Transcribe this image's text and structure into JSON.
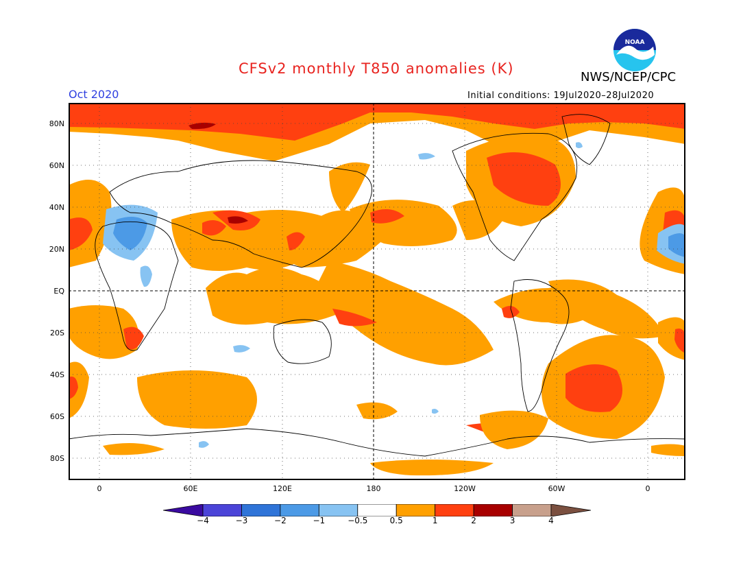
{
  "title": "CFSv2 monthly T850 anomalies (K)",
  "agency": "NWS/NCEP/CPC",
  "logo_text": "NOAA",
  "month": "Oct 2020",
  "initial_conditions": "Initial conditions: 19Jul2020–28Jul2020",
  "lat_labels": [
    "80N",
    "60N",
    "40N",
    "20N",
    "EQ",
    "20S",
    "40S",
    "60S",
    "80S"
  ],
  "lon_labels": [
    "0",
    "60E",
    "120E",
    "180",
    "120W",
    "60W",
    "0"
  ],
  "colorbar": {
    "ticks": [
      "−4",
      "−3",
      "−2",
      "−1",
      "−0.5",
      "0.5",
      "1",
      "2",
      "3",
      "4"
    ],
    "colors": [
      "#3a0aa0",
      "#4b44d8",
      "#2f74d8",
      "#4c9ae6",
      "#87c3f2",
      "#ffffff",
      "#ffa000",
      "#ff4010",
      "#a80000",
      "#c8a08c",
      "#7b5040"
    ]
  },
  "colors": {
    "anomaly_05_1": "#ffa000",
    "anomaly_1_2": "#ff4010",
    "anomaly_2_3": "#a80000",
    "anomaly_m1_m05": "#87c3f2",
    "anomaly_m2_m1": "#4c9ae6"
  }
}
